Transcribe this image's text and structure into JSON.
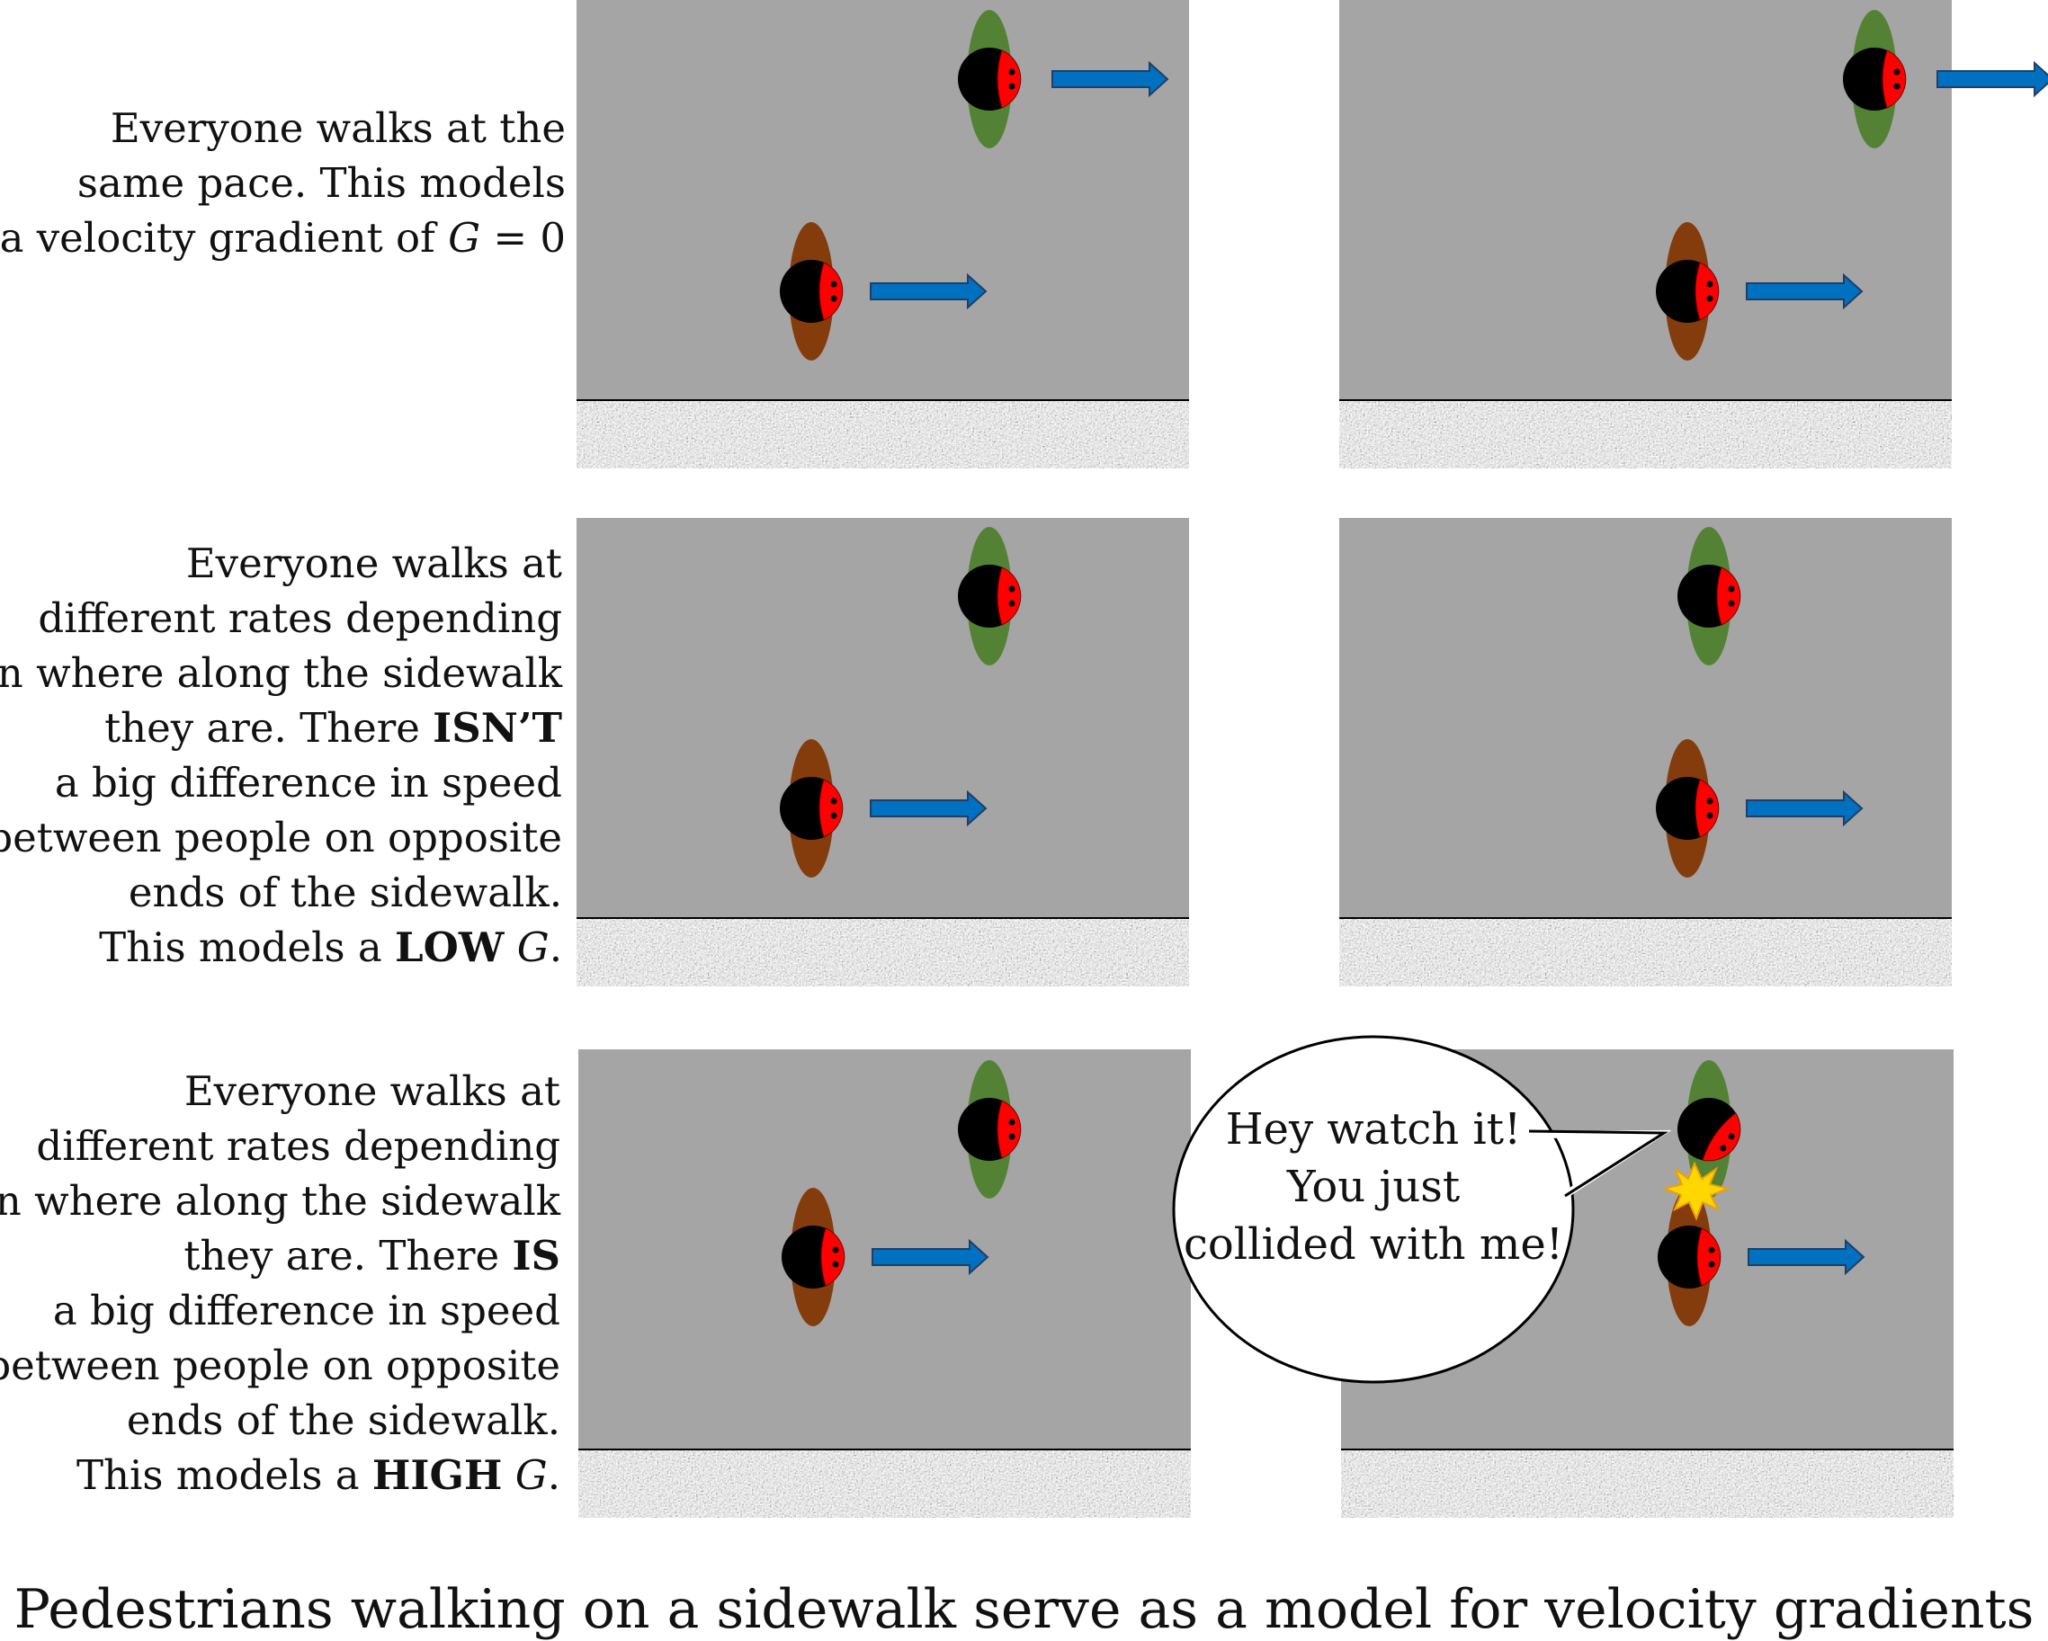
{
  "rows": [
    {
      "lines": [
        [
          {
            "t": "Everyone walks at the"
          }
        ],
        [
          {
            "t": "same pace.  This models"
          }
        ],
        [
          {
            "t": "a velocity gradient of "
          },
          {
            "t": "G",
            "i": true
          },
          {
            "t": " = 0"
          }
        ]
      ]
    },
    {
      "lines": [
        [
          {
            "t": "Everyone walks at"
          }
        ],
        [
          {
            "t": "different rates depending"
          }
        ],
        [
          {
            "t": "on where along the sidewalk"
          }
        ],
        [
          {
            "t": "they are.  There "
          },
          {
            "t": "ISN’T",
            "b": true
          }
        ],
        [
          {
            "t": "a big difference in speed"
          }
        ],
        [
          {
            "t": "between people on opposite"
          }
        ],
        [
          {
            "t": "ends of the sidewalk."
          }
        ],
        [
          {
            "t": "This models a "
          },
          {
            "t": "LOW",
            "b": true
          },
          {
            "t": " "
          },
          {
            "t": "G",
            "i": true
          },
          {
            "t": "."
          }
        ]
      ]
    },
    {
      "lines": [
        [
          {
            "t": "Everyone walks at"
          }
        ],
        [
          {
            "t": "different rates depending"
          }
        ],
        [
          {
            "t": "on where along the sidewalk"
          }
        ],
        [
          {
            "t": "they are.  There "
          },
          {
            "t": "IS",
            "b": true
          }
        ],
        [
          {
            "t": "a big difference in speed"
          }
        ],
        [
          {
            "t": "between people on opposite"
          }
        ],
        [
          {
            "t": "ends of the sidewalk."
          }
        ],
        [
          {
            "t": "This models a "
          },
          {
            "t": "HIGH",
            "b": true
          },
          {
            "t": " "
          },
          {
            "t": "G",
            "i": true
          },
          {
            "t": "."
          }
        ]
      ]
    }
  ],
  "speech_bubble": [
    "Hey watch it!",
    "You just",
    "collided with me!"
  ],
  "caption": "Pedestrians walking on a sidewalk serve as a model for velocity gradients",
  "colors": {
    "road": "#a5a5a5",
    "pedestrian_top_body": "#548235",
    "pedestrian_bottom_body": "#843c0c",
    "head": "#000000",
    "face": "#ff0000",
    "arrow": "#0070c0",
    "arrow_outline": "#1f3f66",
    "collision_star": "#ffd700"
  }
}
